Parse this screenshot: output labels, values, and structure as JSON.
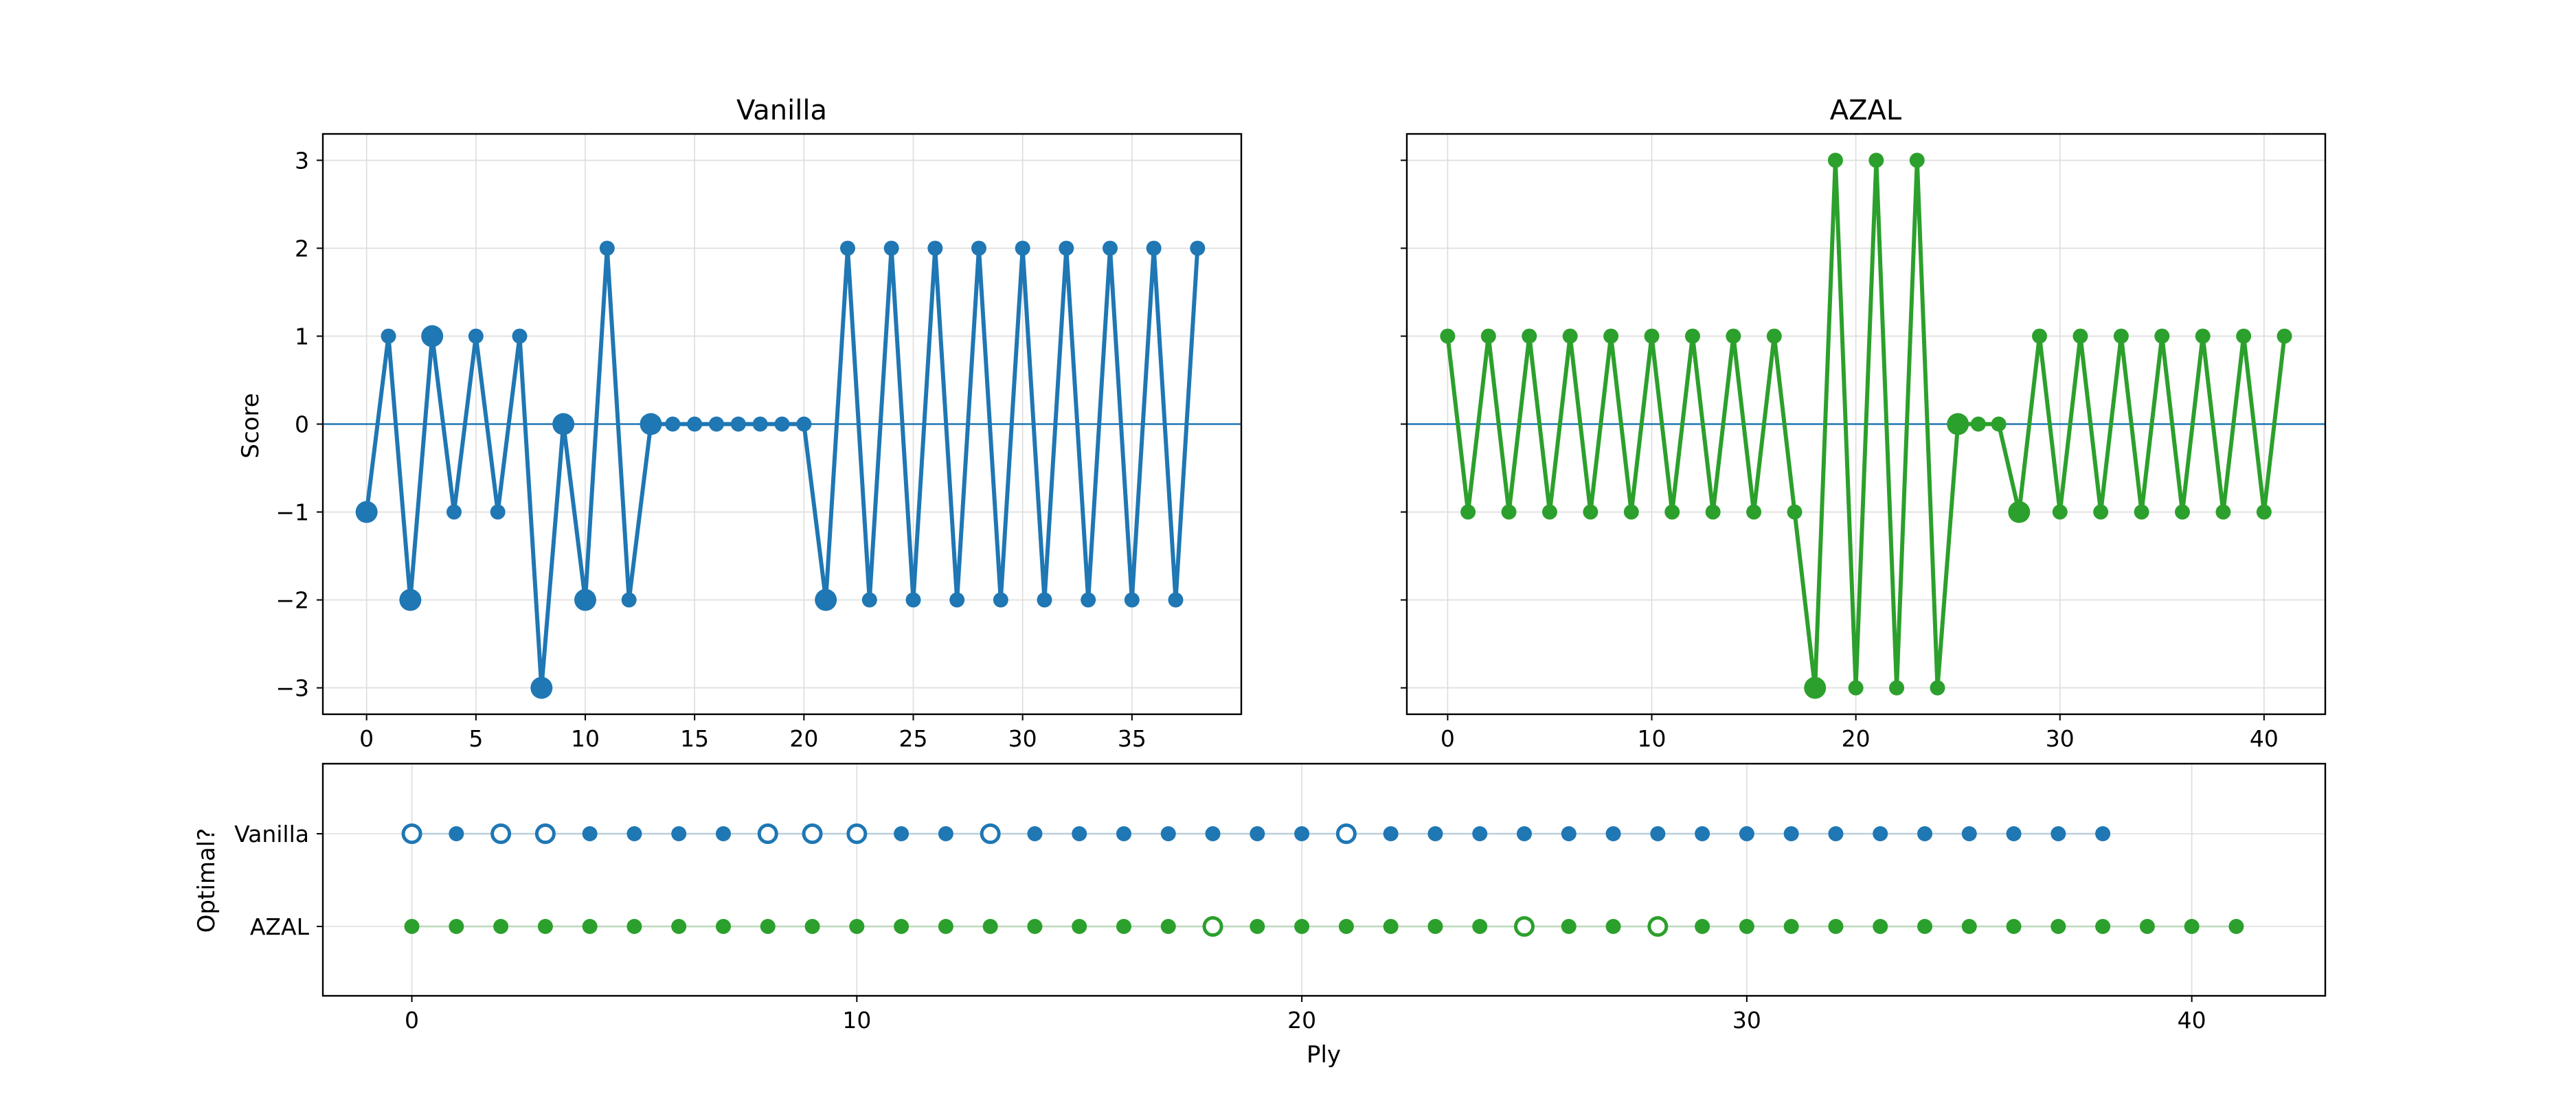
{
  "chart_data": [
    {
      "type": "line",
      "title": "Vanilla",
      "ylabel": "Score",
      "xlabel": "",
      "color": "#1f77b4",
      "xlim": [
        -2,
        40
      ],
      "ylim": [
        -3.3,
        3.3
      ],
      "xticks": [
        0,
        5,
        10,
        15,
        20,
        25,
        30,
        35
      ],
      "yticks": [
        -3,
        -2,
        -1,
        0,
        1,
        2,
        3
      ],
      "ytick_labels": [
        "−3",
        "−2",
        "−1",
        "0",
        "1",
        "2",
        "3"
      ],
      "grid": true,
      "reference_line_y": 0,
      "marker_size_note": "larger markers where move was suboptimal",
      "x": [
        0,
        1,
        2,
        3,
        4,
        5,
        6,
        7,
        8,
        9,
        10,
        11,
        12,
        13,
        14,
        15,
        16,
        17,
        18,
        19,
        20,
        21,
        22,
        23,
        24,
        25,
        26,
        27,
        28,
        29,
        30,
        31,
        32,
        33,
        34,
        35,
        36,
        37,
        38
      ],
      "y": [
        -1,
        1,
        -2,
        1,
        -1,
        1,
        -1,
        1,
        -3,
        0,
        -2,
        2,
        -2,
        0,
        0,
        0,
        0,
        0,
        0,
        0,
        0,
        -2,
        2,
        -2,
        2,
        -2,
        2,
        -2,
        2,
        -2,
        2,
        -2,
        2,
        -2,
        2,
        -2,
        2,
        -2,
        2
      ],
      "suboptimal_plies": [
        0,
        2,
        3,
        8,
        9,
        10,
        13,
        21
      ]
    },
    {
      "type": "line",
      "title": "AZAL",
      "ylabel": "",
      "xlabel": "",
      "color": "#2ca02c",
      "xlim": [
        -2,
        43
      ],
      "ylim": [
        -3.3,
        3.3
      ],
      "xticks": [
        0,
        10,
        20,
        30,
        40
      ],
      "yticks": [
        -3,
        -2,
        -1,
        0,
        1,
        2,
        3
      ],
      "grid": true,
      "reference_line_y": 0,
      "x": [
        0,
        1,
        2,
        3,
        4,
        5,
        6,
        7,
        8,
        9,
        10,
        11,
        12,
        13,
        14,
        15,
        16,
        17,
        18,
        19,
        20,
        21,
        22,
        23,
        24,
        25,
        26,
        27,
        28,
        29,
        30,
        31,
        32,
        33,
        34,
        35,
        36,
        37,
        38,
        39,
        40,
        41
      ],
      "y": [
        1,
        -1,
        1,
        -1,
        1,
        -1,
        1,
        -1,
        1,
        -1,
        1,
        -1,
        1,
        -1,
        1,
        -1,
        1,
        -1,
        -3,
        3,
        -3,
        3,
        -3,
        3,
        -3,
        0,
        0,
        0,
        -1,
        1,
        -1,
        1,
        -1,
        1,
        -1,
        1,
        -1,
        1,
        -1,
        1,
        -1,
        1
      ],
      "suboptimal_plies": [
        18,
        25,
        28
      ]
    },
    {
      "type": "scatter",
      "title": "",
      "xlabel": "Ply",
      "ylabel": "Optimal?",
      "xlim": [
        -2,
        43
      ],
      "xticks": [
        0,
        10,
        20,
        30,
        40
      ],
      "rows": [
        "Vanilla",
        "AZAL"
      ],
      "grid": true,
      "legend": "filled marker = optimal, hollow marker = suboptimal",
      "series": [
        {
          "name": "Vanilla",
          "color": "#1f77b4",
          "x": [
            0,
            1,
            2,
            3,
            4,
            5,
            6,
            7,
            8,
            9,
            10,
            11,
            12,
            13,
            14,
            15,
            16,
            17,
            18,
            19,
            20,
            21,
            22,
            23,
            24,
            25,
            26,
            27,
            28,
            29,
            30,
            31,
            32,
            33,
            34,
            35,
            36,
            37,
            38
          ],
          "optimal": [
            false,
            true,
            false,
            false,
            true,
            true,
            true,
            true,
            false,
            false,
            false,
            true,
            true,
            false,
            true,
            true,
            true,
            true,
            true,
            true,
            true,
            false,
            true,
            true,
            true,
            true,
            true,
            true,
            true,
            true,
            true,
            true,
            true,
            true,
            true,
            true,
            true,
            true,
            true
          ]
        },
        {
          "name": "AZAL",
          "color": "#2ca02c",
          "x": [
            0,
            1,
            2,
            3,
            4,
            5,
            6,
            7,
            8,
            9,
            10,
            11,
            12,
            13,
            14,
            15,
            16,
            17,
            18,
            19,
            20,
            21,
            22,
            23,
            24,
            25,
            26,
            27,
            28,
            29,
            30,
            31,
            32,
            33,
            34,
            35,
            36,
            37,
            38,
            39,
            40,
            41
          ],
          "optimal": [
            true,
            true,
            true,
            true,
            true,
            true,
            true,
            true,
            true,
            true,
            true,
            true,
            true,
            true,
            true,
            true,
            true,
            true,
            false,
            true,
            true,
            true,
            true,
            true,
            true,
            false,
            true,
            true,
            false,
            true,
            true,
            true,
            true,
            true,
            true,
            true,
            true,
            true,
            true,
            true,
            true,
            true
          ]
        }
      ]
    }
  ]
}
